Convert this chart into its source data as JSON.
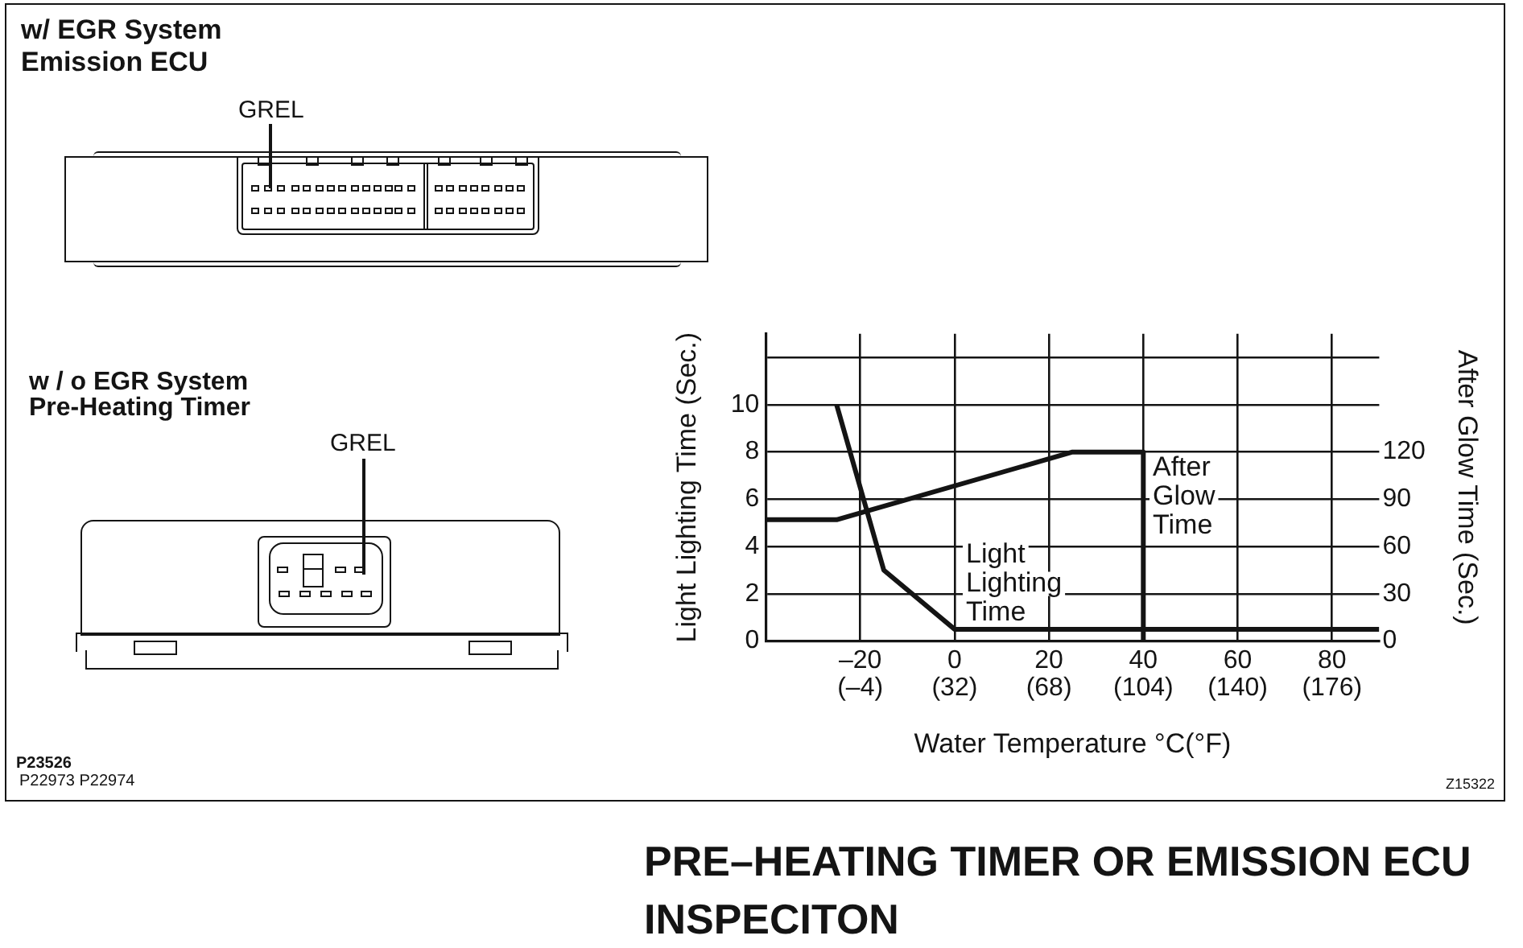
{
  "chart_data": {
    "type": "line",
    "title": "PRE–HEATING TIMER OR EMISSION ECU INSPECITON",
    "xlabel": "Water Temperature °C(°F)",
    "ylabel": "Light Lighting Time (Sec.)",
    "y2label": "After Glow Time (Sec.)",
    "annotations": [
      "w/ EGR System",
      "Emission ECU",
      "GREL",
      "w / o EGR System",
      "Pre-Heating Timer",
      "GREL",
      "P23526",
      "P22973 P22974",
      "Z15322"
    ],
    "series": [
      {
        "name": "Light Lighting Time",
        "color": "#141414",
        "x": [
          -25,
          -15,
          0,
          90
        ],
        "values": [
          10,
          3,
          0.5,
          0.5
        ]
      },
      {
        "name": "After Glow Time",
        "color": "#141414",
        "axis": "y2",
        "x": [
          -40,
          -25,
          25,
          40,
          40
        ],
        "values": [
          77,
          77,
          120,
          120,
          0
        ]
      }
    ],
    "xlim": [
      -40,
      90
    ],
    "xticks": [
      {
        "value": -20,
        "label": "–20"
      },
      0,
      20,
      40,
      60,
      80
    ],
    "x2lim": [
      -40,
      194
    ],
    "x2ticks": [
      {
        "value": -4,
        "label": "(–4)"
      },
      {
        "value": 32,
        "label": "(32)"
      },
      {
        "value": 68,
        "label": "(68)"
      },
      {
        "value": 104,
        "label": "(104)"
      },
      {
        "value": 140,
        "label": "(140)"
      },
      {
        "value": 176,
        "label": "(176)"
      }
    ],
    "ylim": [
      0,
      13
    ],
    "yticks": [
      0,
      2,
      4,
      6,
      8,
      10,
      {
        "value": 12,
        "label": null
      }
    ],
    "y2lim": [
      0,
      195
    ],
    "y2ticks": [
      0,
      30,
      60,
      90,
      120
    ],
    "grid": true,
    "legend": false,
    "marker": "none",
    "line_style": "solid"
  }
}
